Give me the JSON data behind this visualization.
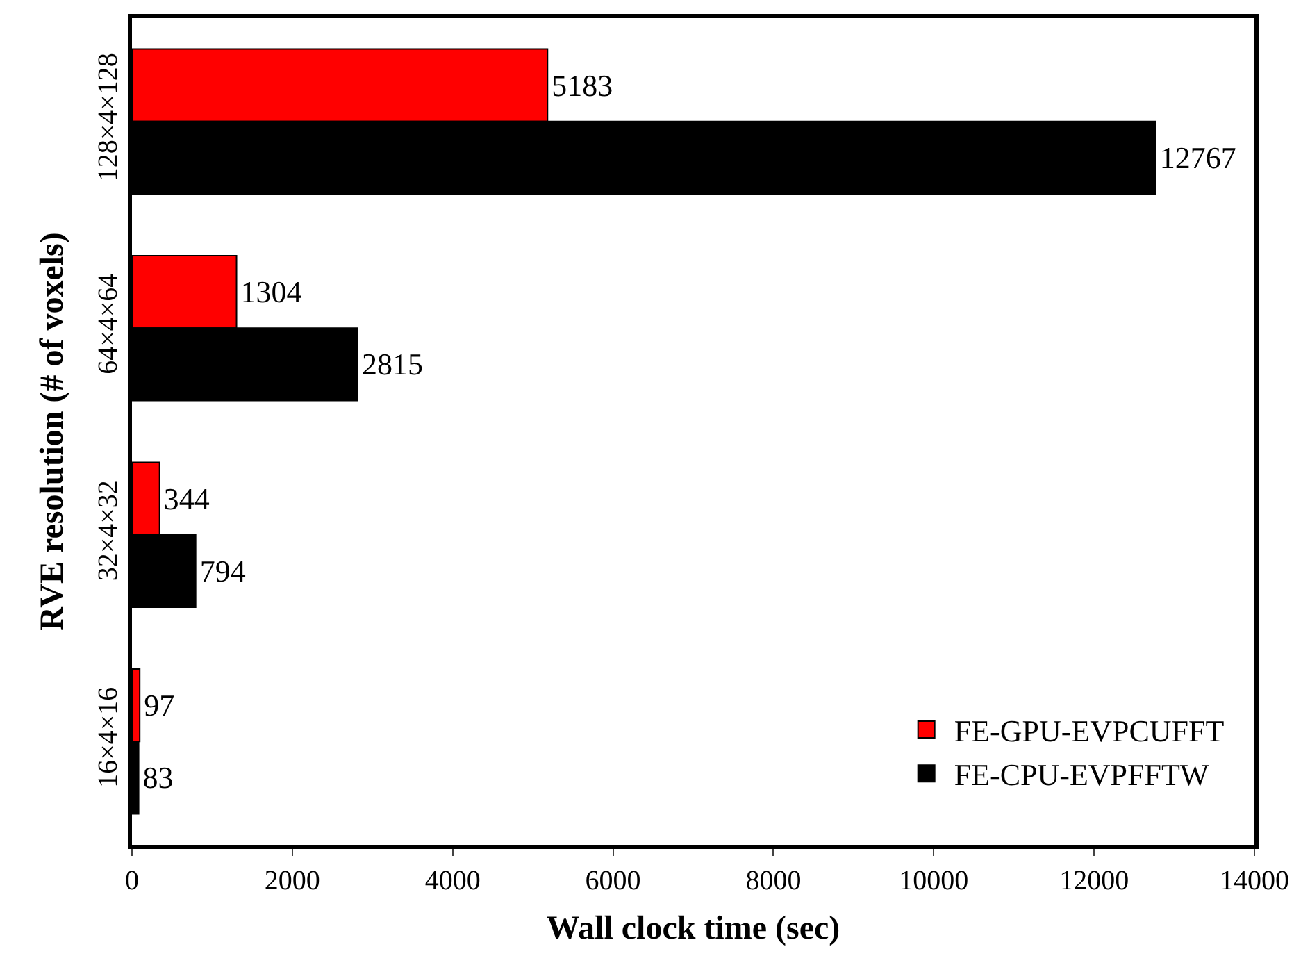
{
  "chart_data": {
    "type": "bar",
    "orientation": "horizontal",
    "xlabel": "Wall clock time (sec)",
    "ylabel": "RVE resolution (# of voxels)",
    "categories": [
      "128×4×128",
      "64×4×64",
      "32×4×32",
      "16×4×16"
    ],
    "series": [
      {
        "name": "FE-GPU-EVPCUFFT",
        "color": "#ff0000",
        "values": [
          5183,
          1304,
          344,
          97
        ]
      },
      {
        "name": "FE-CPU-EVPFFTW",
        "color": "#000000",
        "values": [
          12767,
          2815,
          794,
          83
        ]
      }
    ],
    "xlim": [
      0,
      14000
    ],
    "xticks": [
      0,
      2000,
      4000,
      6000,
      8000,
      10000,
      12000,
      14000
    ],
    "data_labels": true,
    "legend": "bottom right"
  }
}
